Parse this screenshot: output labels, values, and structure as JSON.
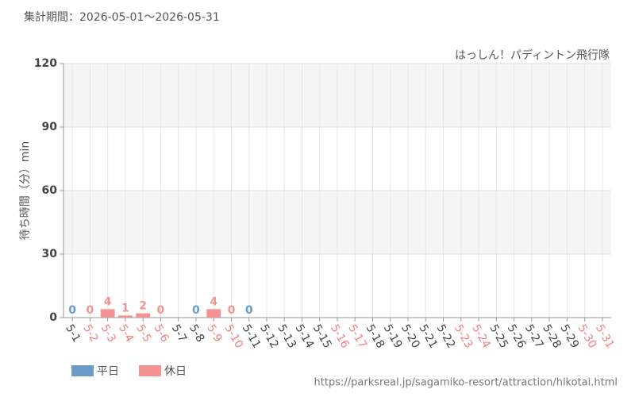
{
  "chart_data": {
    "type": "bar",
    "header": "集計期間：2026-05-01～2026-05-31",
    "title": "はっしん！パディントン飛行隊",
    "y_label": "待ち時間（分）min",
    "source": "https://parksreal.jp/sagamiko-resort/attraction/hikotai.html",
    "categories": [
      "5-1",
      "5-2",
      "5-3",
      "5-4",
      "5-5",
      "5-6",
      "5-7",
      "5-8",
      "5-9",
      "5-10",
      "5-11",
      "5-12",
      "5-13",
      "5-14",
      "5-15",
      "5-16",
      "5-17",
      "5-18",
      "5-19",
      "5-20",
      "5-21",
      "5-22",
      "5-23",
      "5-24",
      "5-25",
      "5-26",
      "5-27",
      "5-28",
      "5-29",
      "5-30",
      "5-31"
    ],
    "category_colors": [
      "#444",
      "#f08080",
      "#f08080",
      "#f08080",
      "#f08080",
      "#f08080",
      "#444",
      "#444",
      "#f08080",
      "#f08080",
      "#444",
      "#444",
      "#444",
      "#444",
      "#444",
      "#f08080",
      "#f08080",
      "#444",
      "#444",
      "#444",
      "#444",
      "#444",
      "#f08080",
      "#f08080",
      "#444",
      "#444",
      "#444",
      "#444",
      "#444",
      "#f08080",
      "#f08080"
    ],
    "series": [
      {
        "name": "平日",
        "color": "#6a9cc7",
        "values": [
          0,
          null,
          null,
          null,
          null,
          null,
          null,
          0,
          null,
          null,
          0,
          null,
          null,
          null,
          null,
          null,
          null,
          null,
          null,
          null,
          null,
          null,
          null,
          null,
          null,
          null,
          null,
          null,
          null,
          null,
          null
        ]
      },
      {
        "name": "休日",
        "color": "#f49393",
        "values": [
          null,
          0,
          4,
          1,
          2,
          0,
          null,
          null,
          4,
          0,
          null,
          null,
          null,
          null,
          null,
          null,
          null,
          null,
          null,
          null,
          null,
          null,
          null,
          null,
          null,
          null,
          null,
          null,
          null,
          null,
          null
        ]
      }
    ],
    "ylim": [
      0,
      120
    ],
    "yticks": [
      0,
      30,
      60,
      90,
      120
    ],
    "grid": true
  }
}
